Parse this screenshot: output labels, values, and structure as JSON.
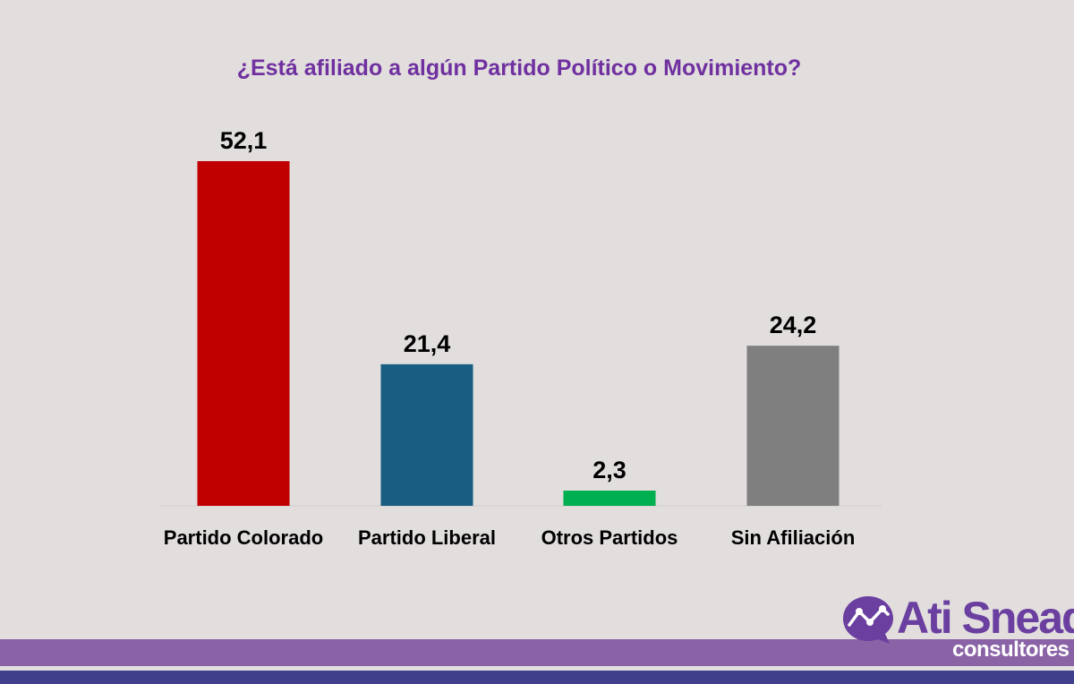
{
  "chart_data": {
    "type": "bar",
    "title": "¿Está afiliado a algún Partido Político o Movimiento?",
    "categories": [
      "Partido Colorado",
      "Partido Liberal",
      "Otros Partidos",
      "Sin Afiliación"
    ],
    "values": [
      52.1,
      21.4,
      2.3,
      24.2
    ],
    "value_labels": [
      "52,1",
      "21,4",
      "2,3",
      "24,2"
    ],
    "colors": [
      "#c00000",
      "#175e82",
      "#00b050",
      "#7f7f7f"
    ],
    "ylim": [
      0,
      55
    ],
    "xlabel": "",
    "ylabel": "",
    "grid": false,
    "legend": "none"
  },
  "logo": {
    "name": "Ati Snead",
    "subtitle": "consultores",
    "icon": "chart-line-bubble-icon",
    "color": "#6b3fa0"
  },
  "background_color": "#e1dedd"
}
